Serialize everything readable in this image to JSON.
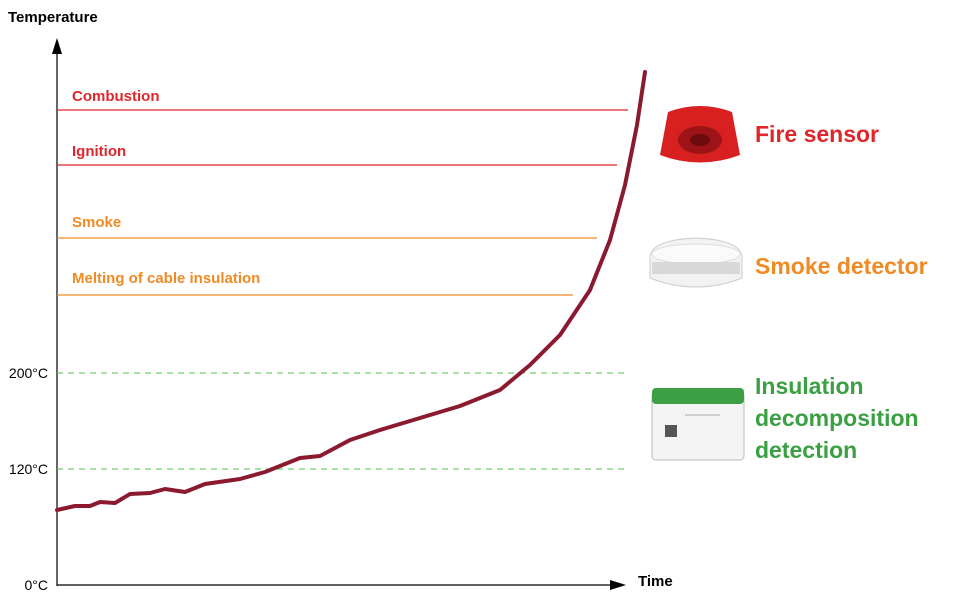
{
  "axis": {
    "y_label": "Temperature",
    "x_label": "Time",
    "ticks": [
      "0°C",
      "120°C",
      "200°C"
    ]
  },
  "thresholds": [
    {
      "label": "Combustion"
    },
    {
      "label": "Ignition"
    },
    {
      "label": "Smoke"
    },
    {
      "label": "Melting of cable insulation"
    }
  ],
  "devices": [
    {
      "lines": [
        "Fire sensor"
      ]
    },
    {
      "lines": [
        "Smoke detector"
      ]
    },
    {
      "lines": [
        "Insulation",
        "decomposition",
        "detection"
      ]
    }
  ]
}
